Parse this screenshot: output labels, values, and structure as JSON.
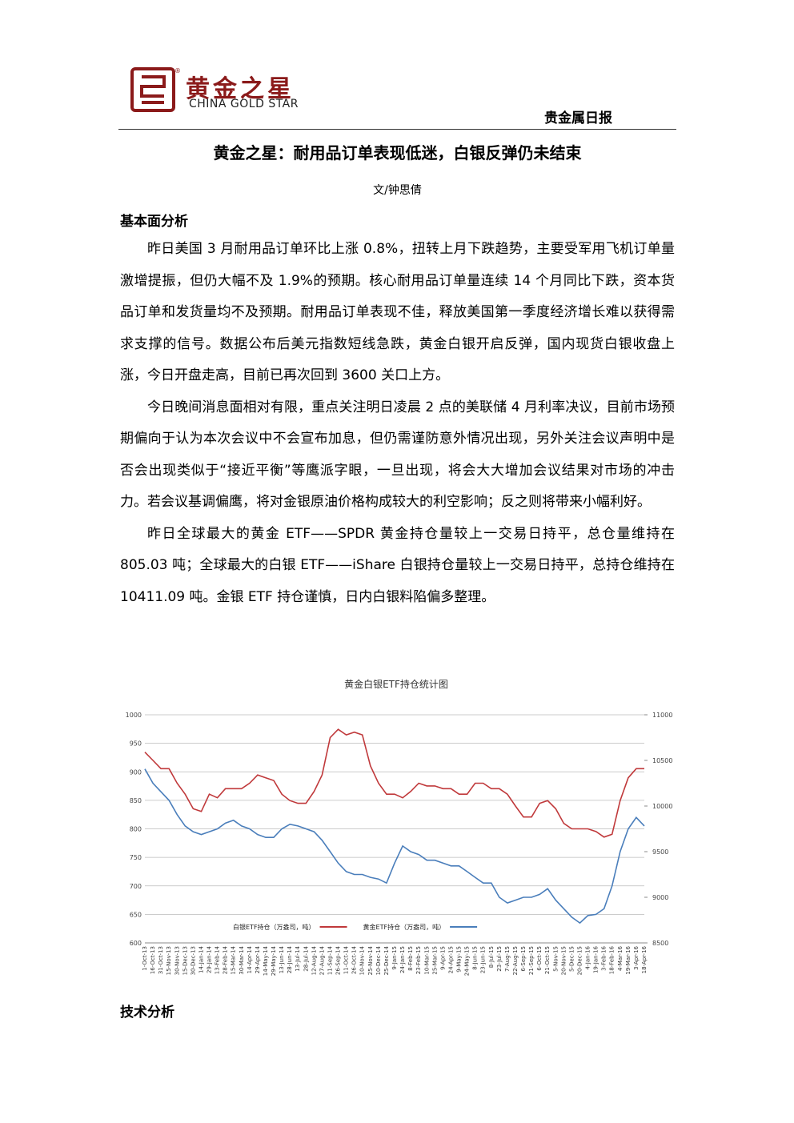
{
  "header": {
    "company_cn": "黄金之星",
    "registered": "®",
    "company_en": "CHINA GOLD STAR",
    "report": "贵金属日报"
  },
  "title": "黄金之星：耐用品订单表现低迷，白银反弹仍未结束",
  "author": "文/钟思倩",
  "sections": [
    {
      "heading": "基本面分析",
      "paragraphs": [
        "昨日美国 3 月耐用品订单环比上涨 0.8%，扭转上月下跌趋势，主要受军用飞机订单量激增提振，但仍大幅不及 1.9%的预期。核心耐用品订单量连续 14 个月同比下跌，资本货品订单和发货量均不及预期。耐用品订单表现不佳，释放美国第一季度经济增长难以获得需求支撑的信号。数据公布后美元指数短线急跌，黄金白银开启反弹，国内现货白银收盘上涨，今日开盘走高，目前已再次回到 3600 关口上方。",
        "今日晚间消息面相对有限，重点关注明日凌晨 2 点的美联储 4 月利率决议，目前市场预期偏向于认为本次会议中不会宣布加息，但仍需谨防意外情况出现，另外关注会议声明中是否会出现类似于“接近平衡”等鹰派字眼，一旦出现，将会大大增加会议结果对市场的冲击力。若会议基调偏鹰，将对金银原油价格构成较大的利空影响；反之则将带来小幅利好。",
        "昨日全球最大的黄金 ETF——SPDR 黄金持仓量较上一交易日持平，总仓量维持在 805.03 吨；全球最大的白银 ETF——iShare 白银持仓量较上一交易日持平，总持仓维持在 10411.09 吨。金银 ETF 持仓谨慎，日内白银料陷偏多整理。"
      ]
    },
    {
      "heading": "技术分析"
    }
  ],
  "chart_data": {
    "type": "line",
    "title": "黄金白银ETF持仓统计图",
    "categories": [
      "1-Oct-13",
      "16-Oct-13",
      "31-Oct-13",
      "15-Nov-13",
      "30-Nov-13",
      "15-Dec-13",
      "30-Dec-13",
      "14-Jan-14",
      "29-Jan-14",
      "13-Feb-14",
      "28-Feb-14",
      "15-Mar-14",
      "30-Mar-14",
      "14-Apr-14",
      "29-Apr-14",
      "14-May-14",
      "29-May-14",
      "13-Jun-14",
      "28-Jun-14",
      "13-Jul-14",
      "28-Jul-14",
      "12-Aug-14",
      "27-Aug-14",
      "11-Sep-14",
      "26-Sep-14",
      "11-Oct-14",
      "26-Oct-14",
      "10-Nov-14",
      "25-Nov-14",
      "10-Dec-14",
      "25-Dec-14",
      "9-Jan-15",
      "24-Jan-15",
      "8-Feb-15",
      "23-Feb-15",
      "10-Mar-15",
      "25-Mar-15",
      "9-Apr-15",
      "24-Apr-15",
      "9-May-15",
      "24-May-15",
      "8-Jun-15",
      "23-Jun-15",
      "8-Jul-15",
      "23-Jul-15",
      "7-Aug-15",
      "22-Aug-15",
      "6-Sep-15",
      "21-Sep-15",
      "6-Oct-15",
      "21-Oct-15",
      "5-Nov-15",
      "20-Nov-15",
      "5-Dec-15",
      "20-Dec-15",
      "4-Jan-16",
      "19-Jan-16",
      "3-Feb-16",
      "18-Feb-16",
      "4-Mar-16",
      "19-Mar-16",
      "3-Apr-16",
      "18-Apr-16"
    ],
    "series": [
      {
        "name": "白银ETF持仓（万盎司，吨）",
        "color": "#c0393b",
        "axis": "y2",
        "values": [
          10590,
          10500,
          10410,
          10410,
          10250,
          10130,
          9970,
          9940,
          10130,
          10090,
          10190,
          10190,
          10190,
          10250,
          10340,
          10310,
          10280,
          10130,
          10060,
          10030,
          10030,
          10160,
          10340,
          10750,
          10840,
          10780,
          10810,
          10780,
          10440,
          10250,
          10130,
          10130,
          10090,
          10160,
          10250,
          10220,
          10220,
          10190,
          10190,
          10130,
          10130,
          10250,
          10250,
          10190,
          10190,
          10130,
          10000,
          9880,
          9880,
          10030,
          10060,
          9970,
          9810,
          9750,
          9750,
          9750,
          9720,
          9660,
          9690,
          10060,
          10310,
          10410,
          10410
        ]
      },
      {
        "name": "黄金ETF持仓（万盎司，吨）",
        "color": "#4a7ebb",
        "values": [
          905,
          880,
          865,
          850,
          825,
          805,
          795,
          790,
          795,
          800,
          810,
          815,
          805,
          800,
          790,
          785,
          785,
          800,
          808,
          805,
          800,
          795,
          780,
          760,
          740,
          725,
          720,
          720,
          715,
          712,
          705,
          740,
          770,
          760,
          755,
          745,
          745,
          740,
          735,
          735,
          725,
          715,
          705,
          705,
          680,
          670,
          675,
          680,
          680,
          685,
          695,
          675,
          660,
          645,
          635,
          648,
          650,
          660,
          700,
          760,
          800,
          820,
          805
        ]
      }
    ],
    "ylim": [
      600,
      1000
    ],
    "yticks": [
      600,
      650,
      700,
      750,
      800,
      850,
      900,
      950,
      1000
    ],
    "y2lim": [
      8500,
      11000
    ],
    "y2ticks": [
      8500,
      9000,
      9500,
      10000,
      10500,
      11000
    ],
    "grid": true,
    "legend": "bottom"
  }
}
